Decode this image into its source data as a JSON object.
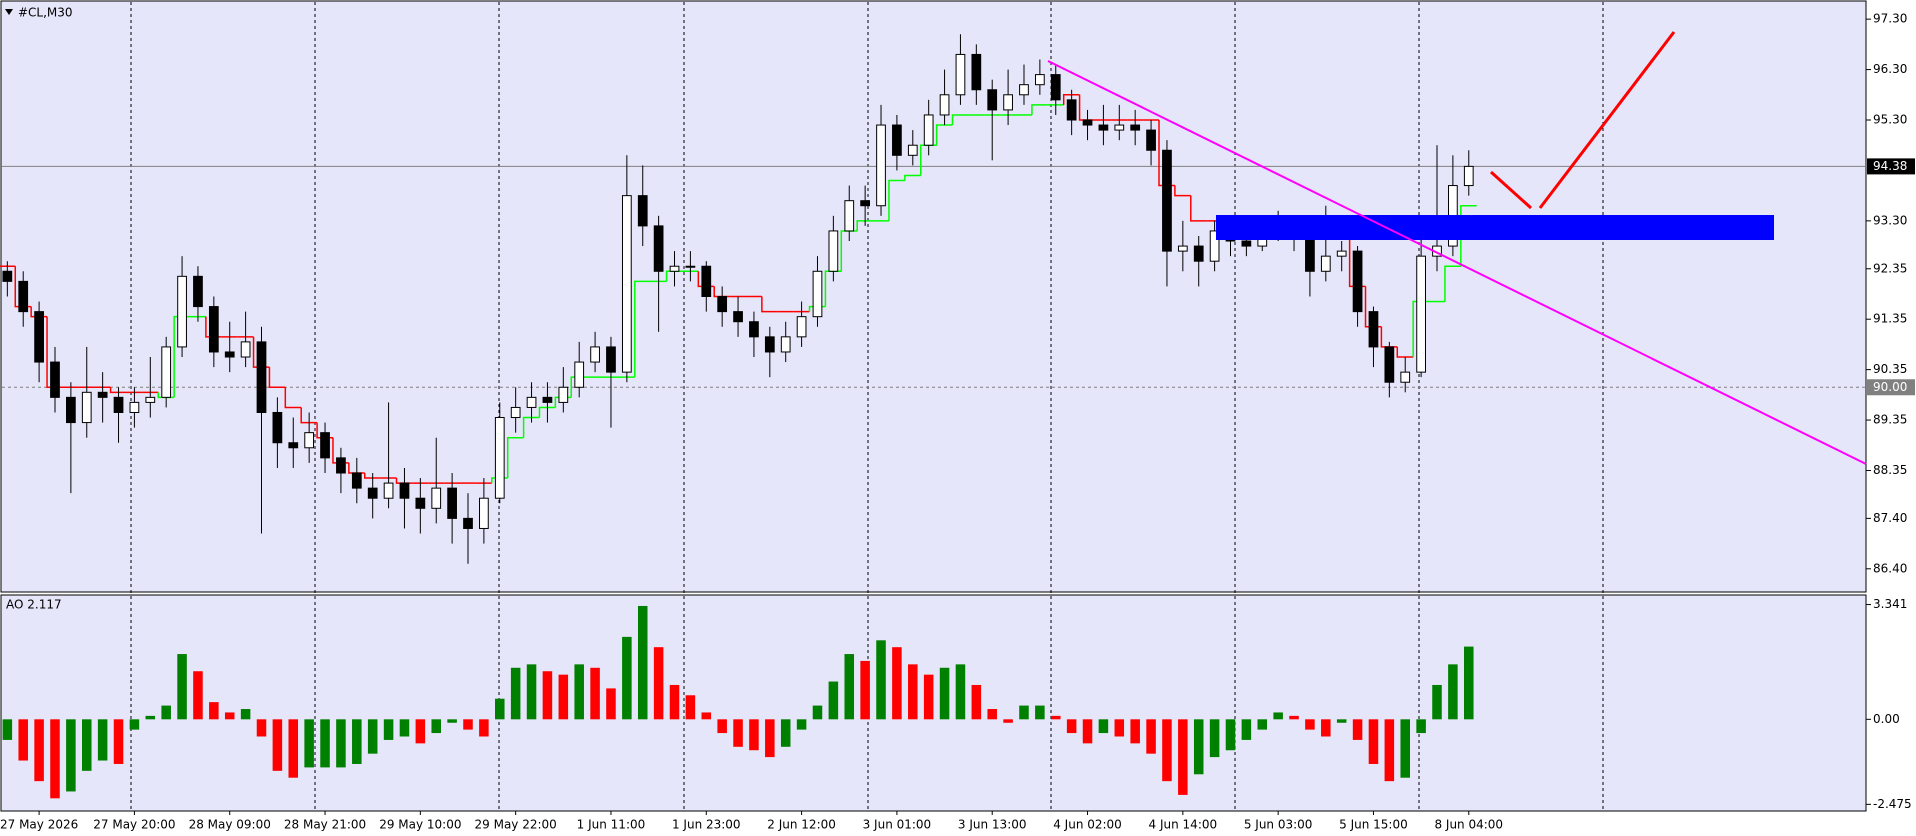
{
  "chart_data": [
    {
      "type": "candlestick",
      "title": "#CL,M30",
      "categories": [
        null,
        null,
        "27 May 2026",
        null,
        null,
        null,
        null,
        null,
        "27 May 20:00",
        null,
        null,
        null,
        null,
        null,
        "28 May 09:00",
        null,
        null,
        null,
        null,
        null,
        "28 May 21:00",
        null,
        null,
        null,
        null,
        null,
        "29 May 10:00",
        null,
        null,
        null,
        null,
        null,
        "29 May 22:00",
        null,
        null,
        null,
        null,
        null,
        "1 Jun 11:00",
        null,
        null,
        null,
        null,
        null,
        "1 Jun 23:00",
        null,
        null,
        null,
        null,
        null,
        "2 Jun 12:00",
        null,
        null,
        null,
        null,
        null,
        "3 Jun 01:00",
        null,
        null,
        null,
        null,
        null,
        "3 Jun 13:00",
        null,
        null,
        null,
        null,
        null,
        "4 Jun 02:00",
        null,
        null,
        null,
        null,
        null,
        "4 Jun 14:00",
        null,
        null,
        null,
        null,
        null,
        "5 Jun 03:00",
        null,
        null,
        null,
        null,
        null,
        "5 Jun 15:00",
        null,
        null,
        null,
        null,
        null,
        "8 Jun 04:00"
      ],
      "open": [
        92.3,
        92.1,
        91.5,
        90.5,
        89.8,
        89.3,
        89.9,
        89.8,
        89.5,
        89.7,
        89.8,
        90.8,
        92.2,
        91.6,
        90.7,
        90.6,
        90.9,
        89.5,
        88.9,
        88.8,
        89.1,
        88.6,
        88.3,
        88.0,
        87.8,
        88.1,
        87.8,
        87.6,
        88.0,
        87.4,
        87.2,
        87.8,
        89.4,
        89.6,
        89.8,
        89.7,
        90.0,
        90.5,
        90.8,
        90.3,
        93.8,
        93.2,
        92.3,
        92.4,
        92.4,
        91.8,
        91.5,
        91.3,
        91.0,
        90.7,
        91.0,
        91.4,
        92.3,
        93.1,
        93.7,
        93.6,
        95.2,
        94.6,
        94.8,
        95.4,
        95.8,
        96.6,
        95.9,
        95.5,
        95.8,
        96.0,
        96.2,
        95.7,
        95.3,
        95.2,
        95.1,
        95.2,
        95.1,
        94.7,
        92.7,
        92.8,
        92.5,
        93.1,
        92.9,
        92.8,
        93.1,
        93.3,
        93.0,
        92.3,
        92.6,
        92.7,
        91.5,
        90.8,
        90.1,
        90.3,
        92.6,
        92.8,
        94.0
      ],
      "high": [
        92.5,
        92.3,
        91.7,
        90.8,
        90.1,
        90.8,
        90.3,
        90.0,
        90.0,
        90.6,
        91.0,
        92.6,
        92.4,
        91.8,
        91.3,
        91.5,
        91.2,
        89.8,
        89.4,
        89.5,
        89.3,
        88.8,
        88.6,
        88.3,
        89.7,
        88.4,
        88.2,
        89.0,
        88.3,
        87.9,
        88.2,
        89.7,
        90.0,
        90.1,
        90.1,
        90.4,
        90.9,
        91.1,
        91.0,
        94.6,
        94.4,
        93.4,
        92.7,
        92.7,
        92.5,
        92.0,
        91.8,
        91.5,
        91.2,
        91.3,
        91.7,
        92.6,
        93.4,
        94.0,
        94.0,
        95.6,
        95.4,
        95.1,
        95.7,
        96.3,
        97.0,
        96.8,
        96.1,
        96.3,
        96.4,
        96.5,
        96.4,
        95.9,
        95.5,
        95.6,
        95.6,
        95.5,
        95.3,
        94.9,
        93.3,
        93.0,
        93.3,
        93.3,
        93.1,
        93.4,
        93.5,
        93.4,
        93.2,
        93.6,
        92.9,
        92.8,
        91.6,
        90.9,
        90.6,
        93.1,
        94.8,
        94.6,
        94.7
      ],
      "low": [
        91.8,
        91.2,
        90.1,
        89.5,
        87.9,
        89.0,
        89.3,
        88.9,
        89.2,
        89.4,
        89.6,
        90.6,
        91.3,
        90.4,
        90.3,
        90.4,
        87.1,
        88.4,
        88.4,
        88.5,
        88.3,
        87.9,
        87.7,
        87.4,
        87.6,
        87.2,
        87.1,
        87.3,
        86.9,
        86.5,
        86.9,
        87.7,
        89.1,
        89.3,
        89.3,
        89.5,
        89.8,
        90.3,
        89.2,
        90.1,
        92.8,
        91.1,
        92.0,
        92.1,
        91.5,
        91.2,
        91.0,
        90.6,
        90.2,
        90.5,
        90.8,
        91.2,
        92.1,
        92.9,
        93.2,
        93.4,
        94.3,
        94.4,
        94.6,
        95.2,
        95.6,
        95.6,
        94.5,
        95.2,
        95.6,
        95.8,
        95.4,
        95.0,
        94.9,
        94.8,
        94.9,
        94.8,
        94.4,
        92.0,
        92.3,
        92.0,
        92.3,
        92.6,
        92.6,
        92.7,
        92.9,
        92.7,
        91.8,
        92.1,
        92.3,
        91.2,
        90.4,
        89.8,
        89.9,
        90.2,
        92.3,
        92.6,
        93.8
      ],
      "close": [
        92.1,
        91.5,
        90.5,
        89.8,
        89.3,
        89.9,
        89.8,
        89.5,
        89.7,
        89.8,
        90.8,
        92.2,
        91.6,
        90.7,
        90.6,
        90.9,
        89.5,
        88.9,
        88.8,
        89.1,
        88.6,
        88.3,
        88.0,
        87.8,
        88.1,
        87.8,
        87.6,
        88.0,
        87.4,
        87.2,
        87.8,
        89.4,
        89.6,
        89.8,
        89.7,
        90.0,
        90.5,
        90.8,
        90.3,
        93.8,
        93.2,
        92.3,
        92.4,
        92.4,
        91.8,
        91.5,
        91.3,
        91.0,
        90.7,
        91.0,
        91.4,
        92.3,
        93.1,
        93.7,
        93.6,
        95.2,
        94.6,
        94.8,
        95.4,
        95.8,
        96.6,
        95.9,
        95.5,
        95.8,
        96.0,
        96.2,
        95.7,
        95.3,
        95.2,
        95.1,
        95.2,
        95.1,
        94.7,
        92.7,
        92.8,
        92.5,
        93.1,
        92.9,
        92.8,
        93.1,
        93.3,
        93.0,
        92.3,
        92.6,
        92.7,
        91.5,
        90.8,
        90.1,
        90.3,
        92.6,
        92.8,
        94.0,
        94.38
      ],
      "up_color": "#ffffff",
      "down_color": "#000000",
      "wick_color": "#000000",
      "trail": {
        "values": [
          92.4,
          91.6,
          91.4,
          90.0,
          90.0,
          90.0,
          90.0,
          89.9,
          89.9,
          89.9,
          89.8,
          91.4,
          91.4,
          91.0,
          91.0,
          91.0,
          90.4,
          90.0,
          89.6,
          89.3,
          89.0,
          88.5,
          88.3,
          88.2,
          88.2,
          88.1,
          88.1,
          88.1,
          88.1,
          88.1,
          88.1,
          88.2,
          89.0,
          89.4,
          89.6,
          89.8,
          90.2,
          90.2,
          90.2,
          90.2,
          92.1,
          92.1,
          92.3,
          92.3,
          92.0,
          91.8,
          91.8,
          91.8,
          91.5,
          91.5,
          91.5,
          91.6,
          92.3,
          93.1,
          93.3,
          93.3,
          94.1,
          94.2,
          94.8,
          95.2,
          95.4,
          95.4,
          95.4,
          95.4,
          95.4,
          95.6,
          95.6,
          95.8,
          95.3,
          95.3,
          95.3,
          95.3,
          95.3,
          94.0,
          93.8,
          93.3,
          93.3,
          93.0,
          93.0,
          93.2,
          93.4,
          93.2,
          93.0,
          93.0,
          93.0,
          92.0,
          91.2,
          90.8,
          90.6,
          91.7,
          91.7,
          92.4,
          93.6
        ],
        "up_color": "#00ff00",
        "down_color": "#ff0000"
      },
      "current_price": 94.38,
      "level": {
        "value": 90,
        "label": "90.00"
      },
      "ylim": [
        85.96,
        97.64
      ],
      "yticks": [
        {
          "value": 97.3,
          "label": "97.30"
        },
        {
          "value": 96.3,
          "label": "96.30"
        },
        {
          "value": 95.3,
          "label": "95.30"
        },
        {
          "value": 93.3,
          "label": "93.30"
        },
        {
          "value": 92.35,
          "label": "92.35"
        },
        {
          "value": 91.35,
          "label": "91.35"
        },
        {
          "value": 90.35,
          "label": "90.35"
        },
        {
          "value": 89.35,
          "label": "89.35"
        },
        {
          "value": 88.35,
          "label": "88.35"
        },
        {
          "value": 87.4,
          "label": "87.40"
        },
        {
          "value": 86.4,
          "label": "86.40"
        }
      ]
    },
    {
      "type": "bar",
      "title": "AO 2.117",
      "values": [
        -0.6,
        -1.2,
        -1.8,
        -2.3,
        -2.1,
        -1.5,
        -1.2,
        -1.3,
        -0.3,
        0.1,
        0.4,
        1.9,
        1.4,
        0.5,
        0.2,
        0.3,
        -0.5,
        -1.5,
        -1.7,
        -1.4,
        -1.4,
        -1.4,
        -1.3,
        -1.0,
        -0.6,
        -0.5,
        -0.7,
        -0.4,
        -0.1,
        -0.3,
        -0.5,
        0.6,
        1.5,
        1.6,
        1.4,
        1.3,
        1.6,
        1.5,
        0.9,
        2.4,
        3.3,
        2.1,
        1.0,
        0.7,
        0.2,
        -0.4,
        -0.8,
        -0.9,
        -1.1,
        -0.8,
        -0.3,
        0.4,
        1.1,
        1.9,
        1.7,
        2.3,
        2.1,
        1.6,
        1.3,
        1.5,
        1.6,
        1.0,
        0.3,
        -0.1,
        0.4,
        0.4,
        0.1,
        -0.4,
        -0.7,
        -0.4,
        -0.5,
        -0.7,
        -1.0,
        -1.8,
        -2.2,
        -1.6,
        -1.1,
        -0.9,
        -0.6,
        -0.3,
        0.2,
        0.1,
        -0.3,
        -0.5,
        -0.1,
        -0.6,
        -1.3,
        -1.8,
        -1.7,
        -0.4,
        1.0,
        1.6,
        2.117
      ],
      "up_color": "#008000",
      "down_color": "#ff0000",
      "ylim": [
        -2.64,
        3.59
      ],
      "yticks": [
        3.341,
        {
          "value": 0,
          "label": "0.00"
        },
        -2.475
      ]
    }
  ]
}
